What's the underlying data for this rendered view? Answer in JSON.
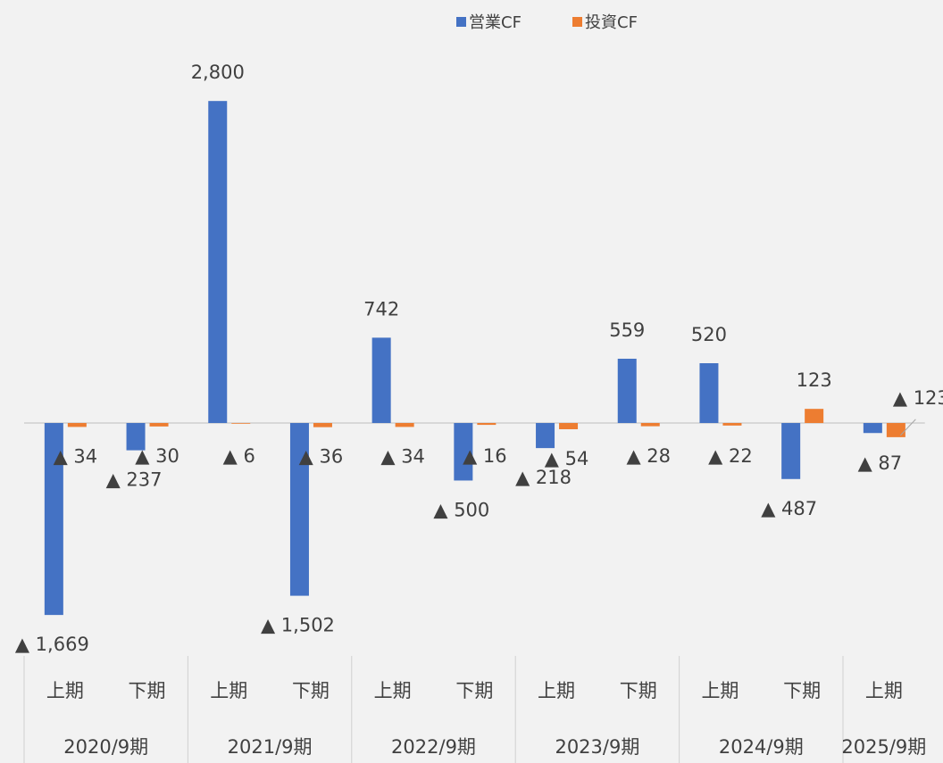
{
  "chart_data": {
    "type": "bar",
    "groups": [
      {
        "label": "2020/9期",
        "categories": [
          "上期",
          "下期"
        ]
      },
      {
        "label": "2021/9期",
        "categories": [
          "上期",
          "下期"
        ]
      },
      {
        "label": "2022/9期",
        "categories": [
          "上期",
          "下期"
        ]
      },
      {
        "label": "2023/9期",
        "categories": [
          "上期",
          "下期"
        ]
      },
      {
        "label": "2024/9期",
        "categories": [
          "上期",
          "下期"
        ]
      },
      {
        "label": "2025/9期",
        "categories": [
          "上期"
        ]
      }
    ],
    "series": [
      {
        "name": "営業CF",
        "color": "#4472c4",
        "values": [
          -1669,
          -237,
          2800,
          -1502,
          742,
          -500,
          -218,
          559,
          520,
          -487,
          -87
        ],
        "value_labels": [
          "▲ 1,669",
          "▲ 237",
          "2,800",
          "▲ 1,502",
          "742",
          "▲ 500",
          "▲ 218",
          "559",
          "520",
          "▲ 487",
          "▲ 87"
        ]
      },
      {
        "name": "投資CF",
        "color": "#ed7d31",
        "values": [
          -34,
          -30,
          -6,
          -36,
          -34,
          -16,
          -54,
          -28,
          -22,
          123,
          -123
        ],
        "value_labels": [
          "▲ 34",
          "▲ 30",
          "▲ 6",
          "▲ 36",
          "▲ 34",
          "▲ 16",
          "▲ 54",
          "▲ 28",
          "▲ 22",
          "123",
          "▲ 123"
        ]
      }
    ],
    "ylim": [
      -2025,
      3135
    ],
    "legend": "top"
  }
}
